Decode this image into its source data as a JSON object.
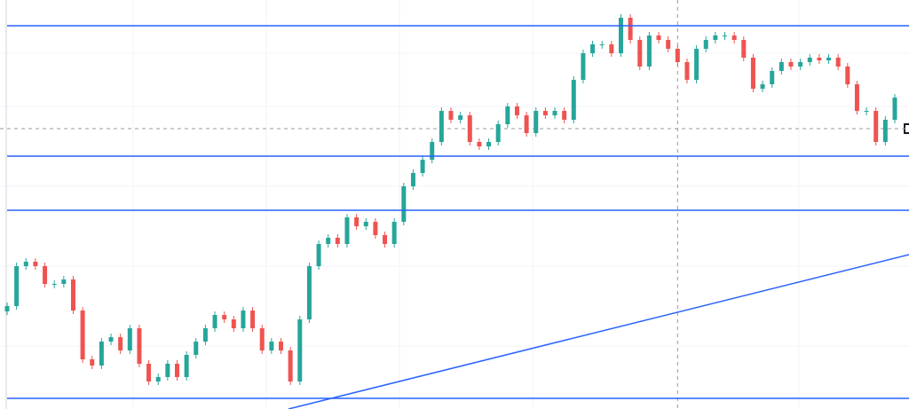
{
  "chart_data": {
    "type": "candlestick",
    "open": [
      110,
      116,
      161,
      166,
      161,
      141,
      141,
      146,
      111,
      56,
      49,
      76,
      81,
      66,
      91,
      51,
      31,
      36,
      51,
      36,
      61,
      76,
      91,
      106,
      101,
      91,
      111,
      91,
      66,
      76,
      66,
      31,
      101,
      161,
      186,
      193,
      186,
      216,
      206,
      211,
      196,
      186,
      211,
      251,
      266,
      281,
      301,
      336,
      326,
      331,
      301,
      296,
      301,
      321,
      341,
      331,
      311,
      336,
      331,
      336,
      326,
      371,
      401,
      411,
      411,
      401,
      441,
      416,
      386,
      421,
      416,
      406,
      391,
      371,
      406,
      416,
      421,
      421,
      416,
      396,
      361,
      366,
      381,
      391,
      386,
      391,
      396,
      393,
      396,
      386,
      366,
      336,
      336,
      301,
      326
    ],
    "close": [
      116,
      161,
      166,
      161,
      141,
      141,
      146,
      111,
      56,
      49,
      76,
      81,
      66,
      91,
      51,
      31,
      36,
      51,
      36,
      61,
      76,
      91,
      106,
      101,
      91,
      111,
      91,
      66,
      76,
      66,
      31,
      101,
      161,
      186,
      193,
      186,
      216,
      206,
      211,
      196,
      186,
      211,
      251,
      266,
      281,
      301,
      336,
      326,
      331,
      301,
      296,
      301,
      321,
      341,
      331,
      311,
      336,
      331,
      336,
      326,
      371,
      401,
      411,
      411,
      401,
      441,
      416,
      386,
      421,
      416,
      406,
      391,
      371,
      406,
      416,
      421,
      421,
      416,
      396,
      361,
      366,
      381,
      391,
      386,
      391,
      396,
      393,
      396,
      386,
      366,
      336,
      336,
      301,
      326,
      351
    ],
    "up_color": "#26a69a",
    "down_color": "#ef5350",
    "ylim": [
      0,
      461
    ],
    "levels": [
      432,
      285,
      224,
      12
    ],
    "level_color": "#2962ff",
    "trendline": {
      "from": [
        29.8,
        0
      ],
      "to": [
        95.5,
        174
      ]
    },
    "crosshair": {
      "x": 71.0,
      "y": 316
    }
  }
}
